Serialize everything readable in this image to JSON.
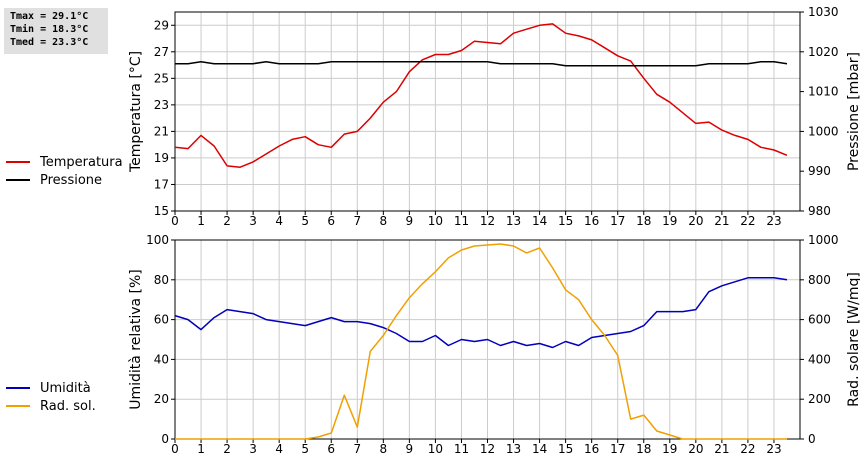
{
  "stats": {
    "tmax": "Tmax = 29.1°C",
    "tmin": "Tmin = 18.3°C",
    "tmed": "Tmed = 23.3°C"
  },
  "legend_top": [
    {
      "label": "Temperatura",
      "color": "#dd0000"
    },
    {
      "label": "Pressione",
      "color": "#000000"
    }
  ],
  "legend_bottom": [
    {
      "label": "Umidità",
      "color": "#0000bb"
    },
    {
      "label": "Rad. sol.",
      "color": "#f0a000"
    }
  ],
  "chart_data": [
    {
      "type": "line",
      "x_ticks": [
        "0",
        "1",
        "2",
        "3",
        "4",
        "5",
        "6",
        "7",
        "8",
        "9",
        "10",
        "11",
        "12",
        "13",
        "14",
        "15",
        "16",
        "17",
        "18",
        "19",
        "20",
        "21",
        "22",
        "23"
      ],
      "xlim": [
        0,
        24
      ],
      "grid": true,
      "left_axis": {
        "label": "Temperatura [°C]",
        "ylim": [
          15,
          30
        ],
        "ticks": [
          "15",
          "17",
          "19",
          "21",
          "23",
          "25",
          "27",
          "29"
        ]
      },
      "right_axis": {
        "label": "Pressione [mbar]",
        "ylim": [
          980,
          1030
        ],
        "ticks": [
          "980",
          "990",
          "1000",
          "1010",
          "1020",
          "1030"
        ]
      },
      "series": [
        {
          "name": "Temperatura",
          "axis": "left",
          "color": "#dd0000",
          "x": [
            0,
            0.5,
            1,
            1.5,
            2,
            2.5,
            3,
            3.5,
            4,
            4.5,
            5,
            5.5,
            6,
            6.5,
            7,
            7.5,
            8,
            8.5,
            9,
            9.5,
            10,
            10.5,
            11,
            11.5,
            12,
            12.5,
            13,
            13.5,
            14,
            14.5,
            15,
            15.5,
            16,
            16.5,
            17,
            17.5,
            18,
            18.5,
            19,
            19.5,
            20,
            20.5,
            21,
            21.5,
            22,
            22.5,
            23,
            23.5
          ],
          "values": [
            19.8,
            19.7,
            20.7,
            19.9,
            18.4,
            18.3,
            18.7,
            19.3,
            19.9,
            20.4,
            20.6,
            20.0,
            19.8,
            20.8,
            21.0,
            22.0,
            23.2,
            24.0,
            25.5,
            26.4,
            26.8,
            26.8,
            27.1,
            27.8,
            27.7,
            27.6,
            28.4,
            28.7,
            29.0,
            29.1,
            28.4,
            28.2,
            27.9,
            27.3,
            26.7,
            26.3,
            25.0,
            23.8,
            23.2,
            22.4,
            21.6,
            21.7,
            21.1,
            20.7,
            20.4,
            19.8,
            19.6,
            19.2
          ]
        },
        {
          "name": "Pressione",
          "axis": "right",
          "color": "#000000",
          "x": [
            0,
            0.5,
            1,
            1.5,
            2,
            2.5,
            3,
            3.5,
            4,
            4.5,
            5,
            5.5,
            6,
            6.5,
            7,
            7.5,
            8,
            8.5,
            9,
            9.5,
            10,
            10.5,
            11,
            11.5,
            12,
            12.5,
            13,
            13.5,
            14,
            14.5,
            15,
            15.5,
            16,
            16.5,
            17,
            17.5,
            18,
            18.5,
            19,
            19.5,
            20,
            20.5,
            21,
            21.5,
            22,
            22.5,
            23,
            23.5
          ],
          "values": [
            1017,
            1017,
            1017.5,
            1017,
            1017,
            1017,
            1017,
            1017.5,
            1017,
            1017,
            1017,
            1017,
            1017.5,
            1017.5,
            1017.5,
            1017.5,
            1017.5,
            1017.5,
            1017.5,
            1017.5,
            1017.5,
            1017.5,
            1017.5,
            1017.5,
            1017.5,
            1017,
            1017,
            1017,
            1017,
            1017,
            1016.5,
            1016.5,
            1016.5,
            1016.5,
            1016.5,
            1016.5,
            1016.5,
            1016.5,
            1016.5,
            1016.5,
            1016.5,
            1017,
            1017,
            1017,
            1017,
            1017.5,
            1017.5,
            1017
          ]
        }
      ]
    },
    {
      "type": "line",
      "x_ticks": [
        "0",
        "1",
        "2",
        "3",
        "4",
        "5",
        "6",
        "7",
        "8",
        "9",
        "10",
        "11",
        "12",
        "13",
        "14",
        "15",
        "16",
        "17",
        "18",
        "19",
        "20",
        "21",
        "22",
        "23"
      ],
      "xlim": [
        0,
        24
      ],
      "grid": true,
      "left_axis": {
        "label": "Umidità relativa [%]",
        "ylim": [
          0,
          100
        ],
        "ticks": [
          "0",
          "20",
          "40",
          "60",
          "80",
          "100"
        ]
      },
      "right_axis": {
        "label": "Rad. solare [W/mq]",
        "ylim": [
          0,
          1000
        ],
        "ticks": [
          "0",
          "200",
          "400",
          "600",
          "800",
          "1000"
        ]
      },
      "series": [
        {
          "name": "Umidità",
          "axis": "left",
          "color": "#0000bb",
          "x": [
            0,
            0.5,
            1,
            1.5,
            2,
            2.5,
            3,
            3.5,
            4,
            4.5,
            5,
            5.5,
            6,
            6.5,
            7,
            7.5,
            8,
            8.5,
            9,
            9.5,
            10,
            10.5,
            11,
            11.5,
            12,
            12.5,
            13,
            13.5,
            14,
            14.5,
            15,
            15.5,
            16,
            16.5,
            17,
            17.5,
            18,
            18.5,
            19,
            19.5,
            20,
            20.5,
            21,
            21.5,
            22,
            22.5,
            23,
            23.5
          ],
          "values": [
            62,
            60,
            55,
            61,
            65,
            64,
            63,
            60,
            59,
            58,
            57,
            59,
            61,
            59,
            59,
            58,
            56,
            53,
            49,
            49,
            52,
            47,
            50,
            49,
            50,
            47,
            49,
            47,
            48,
            46,
            49,
            47,
            51,
            52,
            53,
            54,
            57,
            64,
            64,
            64,
            65,
            74,
            77,
            79,
            81,
            81,
            81,
            80
          ]
        },
        {
          "name": "Rad. sol.",
          "axis": "right",
          "color": "#f0a000",
          "x": [
            0,
            0.5,
            1,
            1.5,
            2,
            2.5,
            3,
            3.5,
            4,
            4.5,
            5,
            5.5,
            6,
            6.5,
            7,
            7.5,
            8,
            8.5,
            9,
            9.5,
            10,
            10.5,
            11,
            11.5,
            12,
            12.5,
            13,
            13.5,
            14,
            14.5,
            15,
            15.5,
            16,
            16.5,
            17,
            17.5,
            18,
            18.5,
            19,
            19.5,
            20,
            20.5,
            21,
            21.5,
            22,
            22.5,
            23,
            23.5
          ],
          "values": [
            0,
            0,
            0,
            0,
            0,
            0,
            0,
            0,
            0,
            0,
            0,
            10,
            30,
            220,
            60,
            440,
            520,
            620,
            710,
            780,
            840,
            910,
            950,
            970,
            975,
            980,
            970,
            935,
            960,
            860,
            750,
            700,
            600,
            520,
            420,
            100,
            120,
            40,
            20,
            0,
            0,
            0,
            0,
            0,
            0,
            0,
            0,
            0
          ]
        }
      ]
    }
  ]
}
